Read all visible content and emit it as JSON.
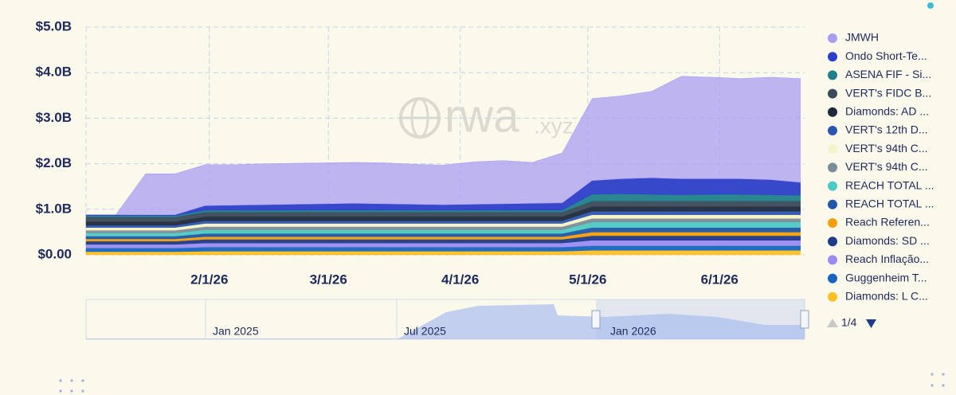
{
  "chart_data": {
    "type": "stacked_area",
    "watermark": {
      "main": "rwa",
      "suffix": ".xyz"
    },
    "x": [
      "1/3/26",
      "1/10/26",
      "1/17/26",
      "1/24/26",
      "1/31/26",
      "2/7/26",
      "2/14/26",
      "2/21/26",
      "2/28/26",
      "3/7/26",
      "3/14/26",
      "3/21/26",
      "3/28/26",
      "4/4/26",
      "4/11/26",
      "4/18/26",
      "4/25/26",
      "5/2/26",
      "5/9/26",
      "5/16/26",
      "5/23/26",
      "5/30/26",
      "6/6/26",
      "6/13/26",
      "6/20/26"
    ],
    "xlim": [
      "1/3/26",
      "6/21/26"
    ],
    "xticks": [
      "2/1/26",
      "3/1/26",
      "4/1/26",
      "5/1/26",
      "6/1/26"
    ],
    "ylim": [
      0,
      5
    ],
    "yticks": [
      {
        "value": 0,
        "label": "$0.00"
      },
      {
        "value": 1,
        "label": "$1.0B"
      },
      {
        "value": 2,
        "label": "$2.0B"
      },
      {
        "value": 3,
        "label": "$3.0B"
      },
      {
        "value": 4,
        "label": "$4.0B"
      },
      {
        "value": 5,
        "label": "$5.0B"
      }
    ],
    "grid": true,
    "series": [
      {
        "name": "JMWH",
        "color": "#a99df2",
        "values": [
          0,
          0,
          0.9,
          0.9,
          0.9,
          0.89,
          0.9,
          0.9,
          0.9,
          0.9,
          0.9,
          0.88,
          0.87,
          0.93,
          0.95,
          0.9,
          1.1,
          1.8,
          1.82,
          1.9,
          2.25,
          2.23,
          2.2,
          2.25,
          2.28
        ]
      },
      {
        "name": "Ondo Short-Te...",
        "color": "#2c3ec9",
        "values": [
          0.02,
          0.02,
          0.02,
          0.02,
          0.1,
          0.11,
          0.12,
          0.13,
          0.14,
          0.15,
          0.14,
          0.13,
          0.12,
          0.13,
          0.14,
          0.15,
          0.16,
          0.3,
          0.33,
          0.36,
          0.35,
          0.34,
          0.34,
          0.33,
          0.28
        ]
      },
      {
        "name": "ASENA FIF - Si...",
        "color": "#1f7f8c",
        "values": [
          0.03,
          0.03,
          0.03,
          0.03,
          0.04,
          0.04,
          0.04,
          0.04,
          0.04,
          0.04,
          0.04,
          0.04,
          0.04,
          0.04,
          0.04,
          0.04,
          0.04,
          0.15,
          0.16,
          0.15,
          0.14,
          0.15,
          0.15,
          0.14,
          0.13
        ]
      },
      {
        "name": "VERT's FIDC B...",
        "color": "#3a4a5a",
        "values": [
          0.1,
          0.1,
          0.1,
          0.1,
          0.1,
          0.1,
          0.1,
          0.1,
          0.1,
          0.1,
          0.1,
          0.1,
          0.1,
          0.1,
          0.1,
          0.1,
          0.1,
          0.12,
          0.12,
          0.12,
          0.12,
          0.12,
          0.12,
          0.12,
          0.12
        ]
      },
      {
        "name": "Diamonds: AD ...",
        "color": "#1e2a3a",
        "values": [
          0.08,
          0.08,
          0.08,
          0.08,
          0.09,
          0.09,
          0.09,
          0.09,
          0.09,
          0.09,
          0.09,
          0.09,
          0.09,
          0.09,
          0.09,
          0.09,
          0.09,
          0.1,
          0.1,
          0.1,
          0.1,
          0.1,
          0.1,
          0.1,
          0.1
        ]
      },
      {
        "name": "VERT's 12th D...",
        "color": "#2b56b0",
        "values": [
          0.05,
          0.05,
          0.05,
          0.05,
          0.06,
          0.06,
          0.06,
          0.06,
          0.06,
          0.06,
          0.06,
          0.06,
          0.06,
          0.06,
          0.06,
          0.06,
          0.06,
          0.08,
          0.08,
          0.08,
          0.08,
          0.08,
          0.08,
          0.08,
          0.08
        ]
      },
      {
        "name": "VERT's 94th C...",
        "color": "#f7f3c8",
        "values": [
          0.06,
          0.06,
          0.06,
          0.06,
          0.07,
          0.07,
          0.07,
          0.07,
          0.07,
          0.07,
          0.07,
          0.07,
          0.07,
          0.07,
          0.07,
          0.07,
          0.07,
          0.08,
          0.08,
          0.08,
          0.08,
          0.08,
          0.08,
          0.08,
          0.08
        ]
      },
      {
        "name": "VERT's 94th C...",
        "color": "#7b8d9a",
        "values": [
          0.06,
          0.06,
          0.06,
          0.06,
          0.07,
          0.07,
          0.07,
          0.07,
          0.07,
          0.07,
          0.07,
          0.07,
          0.07,
          0.07,
          0.07,
          0.07,
          0.07,
          0.08,
          0.08,
          0.08,
          0.08,
          0.08,
          0.08,
          0.08,
          0.08
        ]
      },
      {
        "name": "REACH TOTAL ...",
        "color": "#4ec9c4",
        "values": [
          0.07,
          0.07,
          0.07,
          0.07,
          0.08,
          0.08,
          0.08,
          0.08,
          0.08,
          0.08,
          0.08,
          0.08,
          0.08,
          0.08,
          0.08,
          0.08,
          0.08,
          0.12,
          0.12,
          0.12,
          0.12,
          0.12,
          0.12,
          0.12,
          0.12
        ]
      },
      {
        "name": "REACH TOTAL ...",
        "color": "#1f56a8",
        "values": [
          0.06,
          0.06,
          0.06,
          0.06,
          0.07,
          0.07,
          0.07,
          0.07,
          0.07,
          0.07,
          0.07,
          0.07,
          0.07,
          0.07,
          0.07,
          0.07,
          0.07,
          0.1,
          0.1,
          0.1,
          0.1,
          0.1,
          0.1,
          0.1,
          0.1
        ]
      },
      {
        "name": "Reach Referen...",
        "color": "#f59e0b",
        "values": [
          0.05,
          0.05,
          0.05,
          0.05,
          0.06,
          0.06,
          0.06,
          0.06,
          0.06,
          0.06,
          0.06,
          0.06,
          0.06,
          0.06,
          0.06,
          0.06,
          0.06,
          0.08,
          0.08,
          0.08,
          0.08,
          0.08,
          0.08,
          0.08,
          0.08
        ]
      },
      {
        "name": "Diamonds: SD ...",
        "color": "#1e3a8a",
        "values": [
          0.07,
          0.07,
          0.07,
          0.07,
          0.08,
          0.08,
          0.08,
          0.08,
          0.08,
          0.08,
          0.08,
          0.08,
          0.08,
          0.08,
          0.08,
          0.08,
          0.08,
          0.1,
          0.1,
          0.1,
          0.1,
          0.1,
          0.1,
          0.1,
          0.1
        ]
      },
      {
        "name": "Reach Inflação...",
        "color": "#9a8cf0",
        "values": [
          0.08,
          0.08,
          0.08,
          0.08,
          0.09,
          0.09,
          0.09,
          0.09,
          0.09,
          0.09,
          0.09,
          0.09,
          0.09,
          0.09,
          0.09,
          0.09,
          0.09,
          0.12,
          0.12,
          0.12,
          0.12,
          0.12,
          0.12,
          0.12,
          0.12
        ]
      },
      {
        "name": "Guggenheim T...",
        "color": "#1565c0",
        "values": [
          0.08,
          0.08,
          0.08,
          0.08,
          0.09,
          0.09,
          0.09,
          0.09,
          0.09,
          0.09,
          0.09,
          0.09,
          0.09,
          0.09,
          0.09,
          0.09,
          0.09,
          0.1,
          0.1,
          0.1,
          0.1,
          0.1,
          0.1,
          0.1,
          0.1
        ]
      },
      {
        "name": "Diamonds: L C...",
        "color": "#fbbf24",
        "values": [
          0.07,
          0.07,
          0.07,
          0.07,
          0.08,
          0.08,
          0.08,
          0.08,
          0.08,
          0.08,
          0.08,
          0.08,
          0.08,
          0.08,
          0.08,
          0.08,
          0.08,
          0.1,
          0.1,
          0.1,
          0.1,
          0.1,
          0.1,
          0.1,
          0.1
        ]
      }
    ],
    "legend_page": "1/4",
    "navigator_labels": [
      "Jan 2025",
      "Jul 2025",
      "Jan 2026"
    ]
  }
}
